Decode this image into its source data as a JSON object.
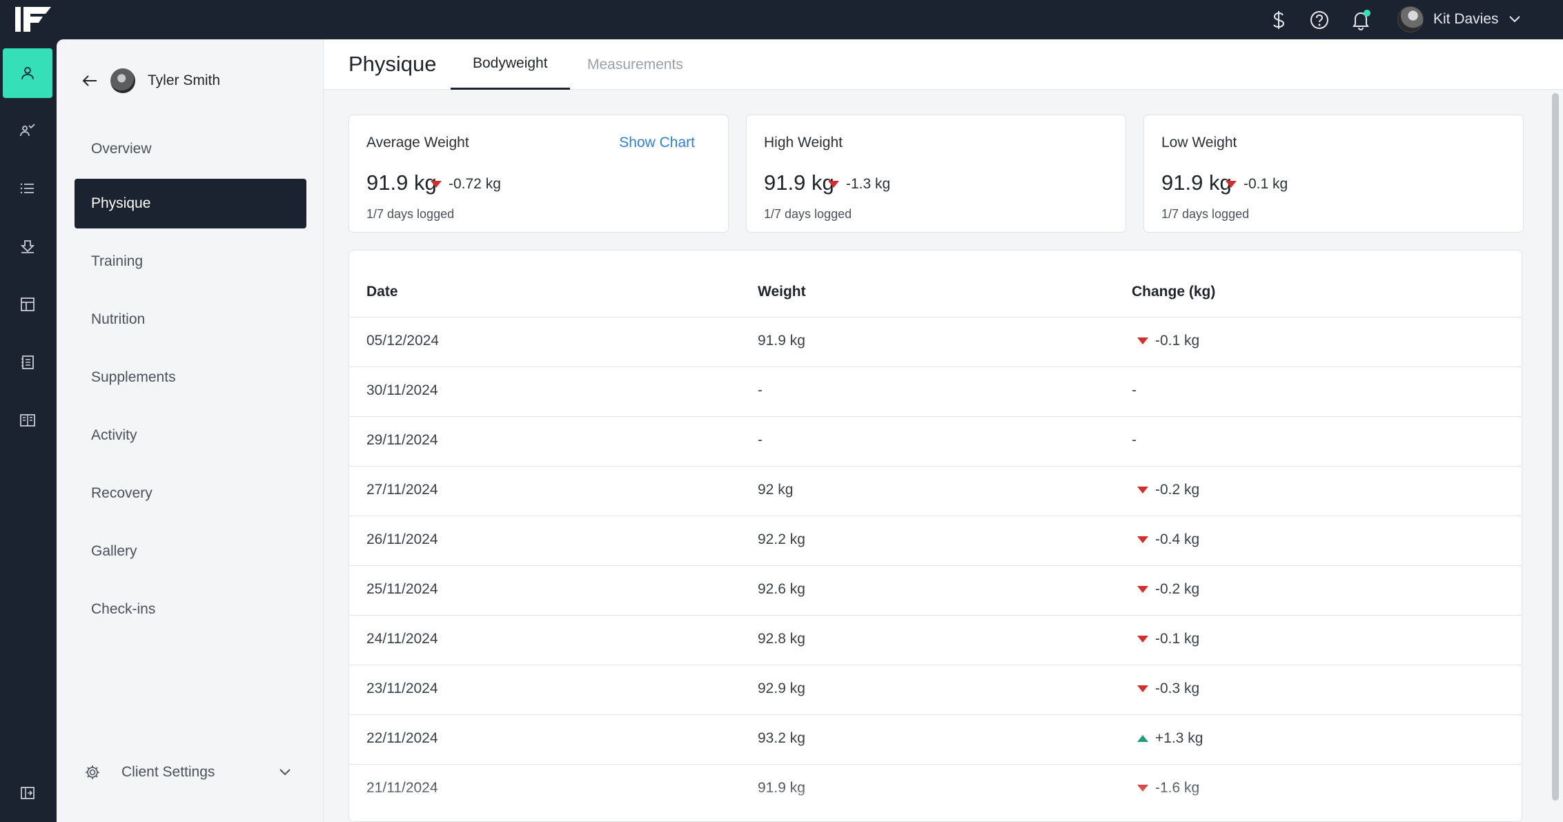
{
  "topbar": {
    "logo": "1F",
    "icons": [
      "dollar-icon",
      "help-icon",
      "bell-icon"
    ],
    "notification_dot_color": "#35e0b8",
    "user_name": "Kit Davies"
  },
  "rail": {
    "items": [
      "user-icon",
      "clients-icon",
      "list-icon",
      "upload-icon",
      "layout-icon",
      "notes-icon",
      "book-icon"
    ],
    "bottom": "collapse-icon",
    "active_color": "#35e0b8"
  },
  "client": {
    "name": "Tyler Smith",
    "nav": [
      "Overview",
      "Physique",
      "Training",
      "Nutrition",
      "Supplements",
      "Activity",
      "Recovery",
      "Gallery",
      "Check-ins"
    ],
    "active": "Physique",
    "settings_label": "Client Settings"
  },
  "page": {
    "title": "Physique",
    "tabs": [
      "Bodyweight",
      "Measurements"
    ],
    "active_tab": "Bodyweight"
  },
  "cards": [
    {
      "label": "Average Weight",
      "link": "Show Chart",
      "value": "91.9 kg",
      "delta": "-0.72 kg",
      "direction": "down",
      "sub": "1/7 days logged"
    },
    {
      "label": "High Weight",
      "link": "",
      "value": "91.9 kg",
      "delta": "-1.3 kg",
      "direction": "down",
      "sub": "1/7 days logged"
    },
    {
      "label": "Low Weight",
      "link": "",
      "value": "91.9 kg",
      "delta": "-0.1 kg",
      "direction": "down",
      "sub": "1/7 days logged"
    }
  ],
  "table": {
    "headers": [
      "Date",
      "Weight",
      "Change (kg)"
    ],
    "rows": [
      {
        "date": "05/12/2024",
        "weight": "91.9 kg",
        "change": "-0.1 kg",
        "direction": "down"
      },
      {
        "date": "30/11/2024",
        "weight": "-",
        "change": "-",
        "direction": "none"
      },
      {
        "date": "29/11/2024",
        "weight": "-",
        "change": "-",
        "direction": "none"
      },
      {
        "date": "27/11/2024",
        "weight": "92 kg",
        "change": "-0.2 kg",
        "direction": "down"
      },
      {
        "date": "26/11/2024",
        "weight": "92.2 kg",
        "change": "-0.4 kg",
        "direction": "down"
      },
      {
        "date": "25/11/2024",
        "weight": "92.6 kg",
        "change": "-0.2 kg",
        "direction": "down"
      },
      {
        "date": "24/11/2024",
        "weight": "92.8 kg",
        "change": "-0.1 kg",
        "direction": "down"
      },
      {
        "date": "23/11/2024",
        "weight": "92.9 kg",
        "change": "-0.3 kg",
        "direction": "down"
      },
      {
        "date": "22/11/2024",
        "weight": "93.2 kg",
        "change": "+1.3 kg",
        "direction": "up"
      },
      {
        "date": "21/11/2024",
        "weight": "91.9 kg",
        "change": "-1.6 kg",
        "direction": "down"
      }
    ]
  },
  "colors": {
    "down": "#d42d2d",
    "up": "#1f9d7a",
    "link": "#2f7fd6",
    "dark": "#1c2330"
  }
}
